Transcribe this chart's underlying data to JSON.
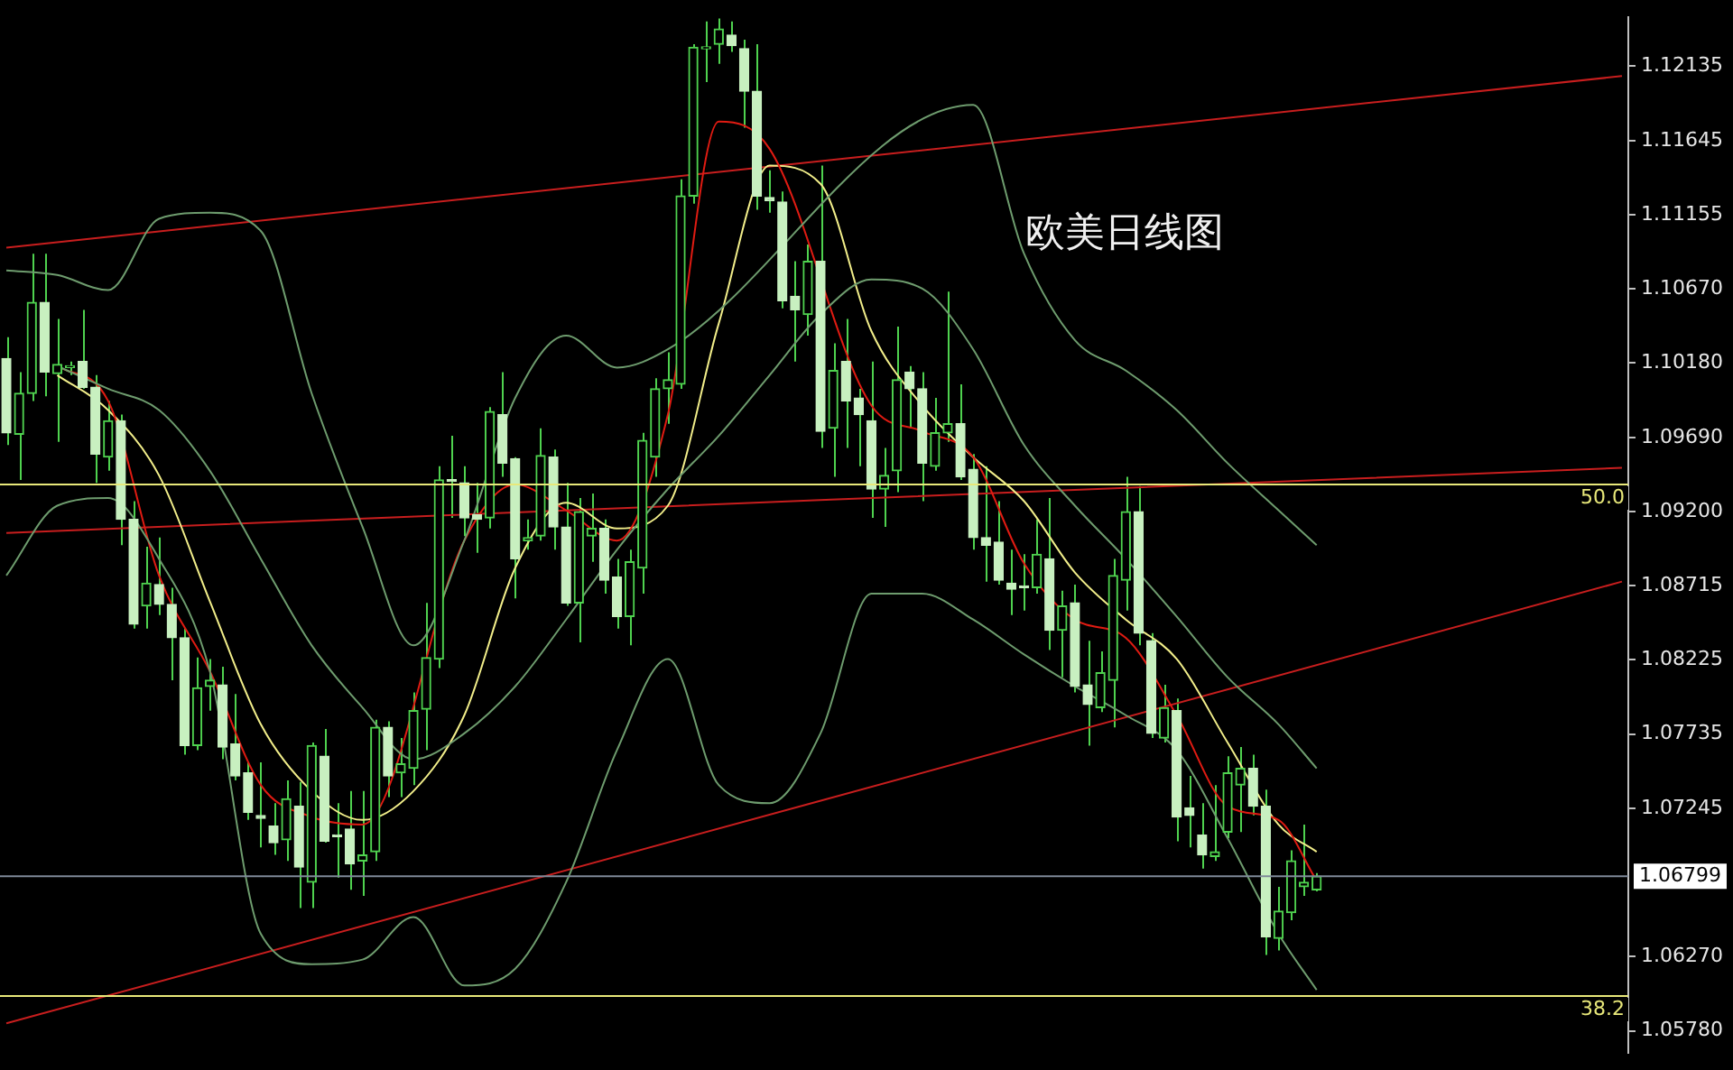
{
  "chart_data": {
    "type": "candlestick",
    "title": "欧美日线图",
    "color": "#4fd24f",
    "categories": [
      null,
      null,
      null,
      null,
      null,
      null,
      null,
      null,
      null,
      null,
      null,
      null,
      null,
      null,
      null,
      null,
      null,
      null,
      null,
      null,
      null,
      null,
      null,
      null,
      null,
      null,
      null,
      null,
      null,
      null,
      null,
      null,
      null,
      null,
      null,
      null,
      null,
      null,
      null,
      null,
      null,
      null,
      null,
      null,
      null,
      null,
      null,
      null,
      null,
      null,
      null,
      null,
      null,
      null,
      null,
      null,
      null,
      null,
      null,
      null,
      null,
      null,
      null,
      null,
      null,
      null,
      null,
      null,
      null,
      null,
      null,
      null,
      null,
      null,
      null,
      null,
      null,
      null,
      null,
      null,
      null,
      null,
      null,
      null,
      null,
      null,
      null,
      null,
      null,
      null,
      null,
      null,
      null,
      null,
      null,
      null,
      null,
      null,
      null,
      null,
      null,
      null,
      null,
      null,
      null,
      null,
      null,
      null,
      null,
      null,
      null,
      null,
      null,
      null,
      null,
      null,
      null,
      null,
      null,
      null,
      null,
      null,
      null,
      null,
      null,
      null,
      null,
      null
    ],
    "ohlc": [
      [
        1.1021,
        1.1035,
        1.0964,
        1.0972
      ],
      [
        1.0971,
        1.1012,
        1.0941,
        1.0998
      ],
      [
        1.0998,
        1.109,
        1.0993,
        1.1058
      ],
      [
        1.1058,
        1.109,
        1.0996,
        1.1012
      ],
      [
        1.1011,
        1.1047,
        1.0966,
        1.1017
      ],
      [
        1.1015,
        1.1019,
        1.101,
        1.1016
      ],
      [
        1.1019,
        1.1053,
        1.1001,
        1.1002
      ],
      [
        1.1002,
        1.101,
        1.0939,
        1.0958
      ],
      [
        1.0956,
        1.0993,
        1.0947,
        1.098
      ],
      [
        1.098,
        1.0984,
        1.0898,
        1.0915
      ],
      [
        1.0915,
        1.0927,
        1.0843,
        1.0846
      ],
      [
        1.0858,
        1.0897,
        1.0843,
        1.0873
      ],
      [
        1.0872,
        1.0903,
        1.0852,
        1.0859
      ],
      [
        1.0859,
        1.087,
        1.0809,
        1.0837
      ],
      [
        1.0837,
        1.0843,
        1.076,
        1.0766
      ],
      [
        1.0766,
        1.0824,
        1.0763,
        1.0804
      ],
      [
        1.0805,
        1.0823,
        1.0789,
        1.0809
      ],
      [
        1.0806,
        1.0818,
        1.0757,
        1.0765
      ],
      [
        1.0767,
        1.08,
        1.0743,
        1.0746
      ],
      [
        1.0748,
        1.0755,
        1.0717,
        1.0722
      ],
      [
        1.072,
        1.0755,
        1.0699,
        1.0718
      ],
      [
        1.0713,
        1.0728,
        1.0694,
        1.0702
      ],
      [
        1.0704,
        1.0743,
        1.069,
        1.0731
      ],
      [
        1.0726,
        1.0742,
        1.0659,
        1.0686
      ],
      [
        1.0676,
        1.0768,
        1.0659,
        1.0766
      ],
      [
        1.0759,
        1.0777,
        1.0702,
        1.0703
      ],
      [
        1.0707,
        1.0728,
        1.0679,
        1.0706
      ],
      [
        1.0711,
        1.0736,
        1.0671,
        1.0688
      ],
      [
        1.069,
        1.0736,
        1.0667,
        1.0694
      ],
      [
        1.0696,
        1.0783,
        1.069,
        1.0778
      ],
      [
        1.0778,
        1.0782,
        1.0732,
        1.0746
      ],
      [
        1.0748,
        1.0771,
        1.0732,
        1.0754
      ],
      [
        1.0751,
        1.0801,
        1.074,
        1.0789
      ],
      [
        1.079,
        1.086,
        1.0763,
        1.0824
      ],
      [
        1.0823,
        1.095,
        1.0817,
        1.0941
      ],
      [
        1.0941,
        1.097,
        1.0916,
        1.094
      ],
      [
        1.0939,
        1.095,
        1.0904,
        1.0916
      ],
      [
        1.0918,
        1.0939,
        1.0893,
        1.0915
      ],
      [
        1.0916,
        1.0989,
        1.0909,
        1.0986
      ],
      [
        1.0984,
        1.1012,
        1.0943,
        1.0952
      ],
      [
        1.0955,
        1.0956,
        1.0863,
        1.0889
      ],
      [
        1.0901,
        1.0915,
        1.0895,
        1.0903
      ],
      [
        1.0904,
        1.0975,
        1.0901,
        1.0957
      ],
      [
        1.0956,
        1.0961,
        1.0895,
        1.091
      ],
      [
        1.091,
        1.0939,
        1.0858,
        1.086
      ],
      [
        1.086,
        1.0929,
        1.0834,
        1.092
      ],
      [
        1.0904,
        1.0932,
        1.0887,
        1.0909
      ],
      [
        1.0909,
        1.0915,
        1.0866,
        1.0875
      ],
      [
        1.0877,
        1.0889,
        1.0843,
        1.0851
      ],
      [
        1.0851,
        1.0895,
        1.0832,
        1.0887
      ],
      [
        1.0883,
        1.0972,
        1.0866,
        1.0967
      ],
      [
        1.0956,
        1.1008,
        1.0943,
        1.1001
      ],
      [
        1.1001,
        1.1025,
        1.0978,
        1.1007
      ],
      [
        1.1004,
        1.1139,
        1.1001,
        1.1128
      ],
      [
        1.1128,
        1.1228,
        1.1123,
        1.1226
      ],
      [
        1.1225,
        1.1243,
        1.1203,
        1.1226
      ],
      [
        1.1228,
        1.1245,
        1.1215,
        1.1238
      ],
      [
        1.1234,
        1.1243,
        1.1223,
        1.1227
      ],
      [
        1.1225,
        1.1231,
        1.1173,
        1.1197
      ],
      [
        1.1197,
        1.1228,
        1.1119,
        1.1128
      ],
      [
        1.1127,
        1.1145,
        1.1117,
        1.1125
      ],
      [
        1.1124,
        1.1131,
        1.1054,
        1.1059
      ],
      [
        1.1062,
        1.1085,
        1.1019,
        1.1053
      ],
      [
        1.105,
        1.1096,
        1.1036,
        1.1085
      ],
      [
        1.1085,
        1.1148,
        1.0962,
        1.0973
      ],
      [
        1.0975,
        1.1031,
        1.0943,
        1.1013
      ],
      [
        1.1019,
        1.1047,
        1.0962,
        1.0993
      ],
      [
        1.0995,
        1.1001,
        1.095,
        1.0984
      ],
      [
        1.098,
        1.1019,
        1.0916,
        1.0935
      ],
      [
        1.0935,
        1.0962,
        1.091,
        1.0944
      ],
      [
        1.0947,
        1.1042,
        1.0933,
        1.1007
      ],
      [
        1.1012,
        1.1016,
        1.0975,
        1.1001
      ],
      [
        1.1001,
        1.1012,
        1.0927,
        1.0952
      ],
      [
        1.095,
        1.0995,
        1.0947,
        1.0972
      ],
      [
        1.0972,
        1.1065,
        1.0966,
        1.0978
      ],
      [
        1.0978,
        1.1004,
        1.0941,
        1.0943
      ],
      [
        1.0948,
        1.0958,
        1.0895,
        1.0903
      ],
      [
        1.0903,
        1.095,
        1.0874,
        1.0898
      ],
      [
        1.09,
        1.0927,
        1.0872,
        1.0875
      ],
      [
        1.0873,
        1.0895,
        1.0852,
        1.0869
      ],
      [
        1.0871,
        1.0892,
        1.0855,
        1.087
      ],
      [
        1.087,
        1.0915,
        1.0866,
        1.0892
      ],
      [
        1.0889,
        1.0929,
        1.0829,
        1.0842
      ],
      [
        1.0842,
        1.0868,
        1.0811,
        1.0858
      ],
      [
        1.086,
        1.0872,
        1.0801,
        1.0805
      ],
      [
        1.0806,
        1.0835,
        1.0766,
        1.0793
      ],
      [
        1.0791,
        1.0828,
        1.0788,
        1.0814
      ],
      [
        1.0809,
        1.0889,
        1.0778,
        1.0878
      ],
      [
        1.0875,
        1.0943,
        1.0855,
        1.092
      ],
      [
        1.092,
        1.0937,
        1.0832,
        1.084
      ],
      [
        1.0835,
        1.084,
        1.0771,
        1.0774
      ],
      [
        1.0771,
        1.0806,
        1.0768,
        1.0791
      ],
      [
        1.0789,
        1.0797,
        1.0703,
        1.0719
      ],
      [
        1.0725,
        1.0746,
        1.0699,
        1.072
      ],
      [
        1.0707,
        1.0728,
        1.0685,
        1.0694
      ],
      [
        1.0693,
        1.074,
        1.069,
        1.0696
      ],
      [
        1.0709,
        1.0759,
        1.0705,
        1.0748
      ],
      [
        1.074,
        1.0765,
        1.0709,
        1.0751
      ],
      [
        1.0751,
        1.076,
        1.072,
        1.0726
      ],
      [
        1.0726,
        1.0737,
        1.0628,
        1.064
      ],
      [
        1.0639,
        1.0673,
        1.0631,
        1.0657
      ],
      [
        1.0656,
        1.0697,
        1.0651,
        1.069
      ],
      [
        1.0673,
        1.0714,
        1.0667,
        1.0676
      ],
      [
        1.0671,
        1.0682,
        1.067,
        1.068
      ],
      null,
      null,
      null,
      null,
      null,
      null,
      null,
      null,
      null,
      null,
      null,
      null,
      null,
      null,
      null,
      null,
      null,
      null,
      null,
      null,
      null,
      null,
      null,
      null
    ],
    "colors": [
      "#c8f0c0",
      "#4fd24f",
      "#4fd24f",
      "#c8f0c0",
      "#4fd24f",
      "#4fd24f",
      "#c8f0c0",
      "#c8f0c0",
      "#4fd24f",
      "#c8f0c0",
      "#c8f0c0",
      "#4fd24f",
      "#c8f0c0",
      "#c8f0c0",
      "#c8f0c0",
      "#4fd24f",
      "#4fd24f",
      "#c8f0c0",
      "#c8f0c0",
      "#c8f0c0",
      "#c8f0c0",
      "#c8f0c0",
      "#4fd24f",
      "#c8f0c0",
      "#4fd24f",
      "#c8f0c0",
      "#c8f0c0",
      "#c8f0c0",
      "#4fd24f",
      "#4fd24f",
      "#c8f0c0",
      "#4fd24f",
      "#4fd24f",
      "#4fd24f",
      "#4fd24f",
      "#c8f0c0",
      "#c8f0c0",
      "#c8f0c0",
      "#4fd24f",
      "#c8f0c0",
      "#c8f0c0",
      "#4fd24f",
      "#4fd24f",
      "#c8f0c0",
      "#c8f0c0",
      "#4fd24f",
      "#4fd24f",
      "#c8f0c0",
      "#c8f0c0",
      "#4fd24f",
      "#4fd24f",
      "#4fd24f",
      "#4fd24f",
      "#4fd24f",
      "#4fd24f",
      "#4fd24f",
      "#4fd24f",
      "#c8f0c0",
      "#c8f0c0",
      "#c8f0c0",
      "#c8f0c0",
      "#c8f0c0",
      "#c8f0c0",
      "#4fd24f",
      "#c8f0c0",
      "#4fd24f",
      "#c8f0c0",
      "#c8f0c0",
      "#c8f0c0",
      "#4fd24f",
      "#4fd24f",
      "#c8f0c0",
      "#c8f0c0",
      "#4fd24f",
      "#4fd24f",
      "#c8f0c0",
      "#c8f0c0",
      "#c8f0c0",
      "#c8f0c0",
      "#c8f0c0",
      "#c8f0c0",
      "#4fd24f",
      "#c8f0c0",
      "#4fd24f",
      "#c8f0c0",
      "#c8f0c0",
      "#4fd24f",
      "#4fd24f",
      "#4fd24f",
      "#c8f0c0",
      "#c8f0c0",
      "#4fd24f",
      "#c8f0c0",
      "#c8f0c0",
      "#c8f0c0",
      "#4fd24f",
      "#4fd24f",
      "#4fd24f",
      "#c8f0c0",
      "#c8f0c0",
      "#4fd24f",
      "#4fd24f",
      "#4fd24f",
      "#4fd24f",
      null,
      null,
      null,
      null,
      null,
      null,
      null,
      null,
      null,
      null,
      null,
      null,
      null,
      null,
      null,
      null,
      null,
      null,
      null,
      null,
      null,
      null,
      null,
      null
    ],
    "series": [
      {
        "type": "line",
        "color": "#6e9c6e",
        "values": [
          1.1079,
          null,
          null,
          null,
          1.1076,
          null,
          null,
          null,
          1.1066,
          null,
          null,
          null,
          1.1113,
          null,
          null,
          null,
          1.1117,
          null,
          null,
          null,
          1.1105,
          null,
          null,
          null,
          1.0998,
          null,
          null,
          null,
          1.091,
          null,
          null,
          null,
          1.0832,
          null,
          null,
          null,
          1.0901,
          null,
          null,
          null,
          1.0995,
          null,
          null,
          null,
          1.1036,
          null,
          null,
          null,
          1.1015,
          null,
          null,
          null,
          1.1027,
          null,
          null,
          null,
          null,
          null,
          null,
          null,
          null,
          null,
          null,
          null,
          null,
          null,
          null,
          null,
          null,
          null,
          null,
          null,
          null,
          null,
          null,
          null,
          1.1188,
          null,
          null,
          null,
          1.109,
          null,
          null,
          null,
          1.1033,
          null,
          null,
          null,
          1.1013,
          null,
          null,
          null,
          1.0987,
          null,
          null,
          null,
          1.0952,
          null,
          null,
          null,
          1.0921,
          null,
          null,
          1.0898,
          null,
          null,
          null,
          null,
          null,
          null,
          null,
          null,
          null,
          null,
          null,
          null,
          null,
          null,
          null,
          null,
          null,
          null,
          null,
          null,
          null,
          null,
          null,
          null
        ]
      },
      {
        "type": "line",
        "color": "#6e9c6e",
        "values": [
          null,
          null,
          null,
          null,
          1.1016,
          null,
          null,
          null,
          1.1001,
          null,
          null,
          null,
          1.0987,
          null,
          null,
          null,
          1.0947,
          null,
          null,
          null,
          1.0889,
          null,
          null,
          null,
          1.0832,
          null,
          null,
          null,
          1.0791,
          null,
          null,
          null,
          1.0757,
          null,
          null,
          null,
          1.0774,
          null,
          null,
          null,
          1.0805,
          null,
          null,
          null,
          1.0849,
          null,
          null,
          null,
          1.0895,
          null,
          null,
          null,
          1.0935,
          null,
          null,
          null,
          1.097,
          null,
          null,
          null,
          1.101,
          null,
          null,
          null,
          1.105,
          null,
          null,
          null,
          1.1073,
          null,
          null,
          null,
          1.1067,
          null,
          null,
          null,
          1.1027,
          null,
          null,
          null,
          1.0964,
          null,
          null,
          null,
          1.0924,
          null,
          null,
          null,
          1.0889,
          null,
          null,
          null,
          1.0851,
          null,
          null,
          null,
          1.0811,
          null,
          null,
          null,
          1.078,
          null,
          null,
          1.0751,
          null,
          null,
          null,
          null,
          null,
          null,
          null,
          null,
          null,
          null,
          null,
          null,
          null,
          null,
          null,
          null,
          null,
          null,
          null,
          null,
          null,
          null,
          null,
          null
        ]
      },
      {
        "type": "line",
        "color": "#6e9c6e",
        "values": [
          1.0878,
          null,
          null,
          null,
          1.0924,
          null,
          null,
          null,
          1.0929,
          null,
          null,
          null,
          1.0889,
          null,
          null,
          null,
          1.0815,
          null,
          null,
          null,
          1.0642,
          null,
          null,
          null,
          1.0622,
          null,
          null,
          null,
          1.0625,
          null,
          null,
          null,
          1.0653,
          null,
          null,
          null,
          1.0608,
          null,
          null,
          null,
          1.0619,
          null,
          null,
          null,
          1.0676,
          null,
          null,
          null,
          1.0763,
          null,
          null,
          null,
          1.0823,
          null,
          null,
          null,
          1.074,
          null,
          null,
          null,
          1.0728,
          null,
          null,
          null,
          1.0774,
          null,
          null,
          null,
          1.0866,
          null,
          null,
          null,
          1.0866,
          null,
          null,
          null,
          1.0849,
          null,
          null,
          null,
          1.0826,
          null,
          null,
          null,
          1.0805,
          null,
          null,
          null,
          1.0786,
          null,
          null,
          null,
          1.0763,
          null,
          null,
          null,
          1.0705,
          null,
          null,
          null,
          1.0642,
          null,
          null,
          1.0605,
          null,
          null,
          null,
          null,
          null,
          null,
          null,
          null,
          null,
          null,
          null,
          null,
          null,
          null,
          null,
          null,
          null,
          null,
          null,
          null,
          null,
          null,
          null,
          null
        ]
      },
      {
        "type": "line",
        "color": "#e01b12",
        "values": [
          null,
          null,
          null,
          null,
          1.1016,
          null,
          null,
          null,
          1.0993,
          null,
          null,
          null,
          1.0878,
          null,
          null,
          null,
          1.0815,
          null,
          null,
          null,
          1.074,
          null,
          null,
          null,
          1.0719,
          null,
          null,
          null,
          1.0714,
          null,
          null,
          null,
          null,
          null,
          null,
          null,
          1.0901,
          null,
          null,
          null,
          1.0938,
          null,
          null,
          null,
          1.0921,
          null,
          null,
          null,
          1.0901,
          null,
          null,
          null,
          1.0984,
          null,
          null,
          null,
          1.1177,
          null,
          null,
          null,
          1.1159,
          null,
          null,
          null,
          null,
          null,
          null,
          null,
          1.099,
          null,
          null,
          null,
          1.0973,
          null,
          null,
          null,
          1.0956,
          null,
          null,
          null,
          1.0886,
          null,
          null,
          null,
          1.0849,
          null,
          null,
          null,
          1.0837,
          null,
          null,
          null,
          1.0786,
          null,
          null,
          null,
          1.0726,
          null,
          null,
          null,
          1.0717,
          null,
          null,
          1.0677,
          null,
          null,
          null,
          null,
          null,
          null,
          null,
          null,
          null,
          null,
          null,
          null,
          null,
          null,
          null,
          null,
          null,
          null,
          null,
          null,
          null,
          null,
          null,
          null
        ]
      },
      {
        "type": "line",
        "color": "#f2ee8a",
        "values": [
          null,
          null,
          null,
          null,
          1.101,
          null,
          null,
          null,
          1.0987,
          null,
          null,
          null,
          1.0944,
          null,
          null,
          null,
          1.0861,
          null,
          null,
          null,
          1.078,
          null,
          null,
          null,
          1.0736,
          null,
          null,
          null,
          1.0717,
          null,
          null,
          null,
          1.0736,
          null,
          null,
          null,
          1.0786,
          null,
          null,
          null,
          1.0883,
          null,
          null,
          null,
          1.0926,
          null,
          null,
          null,
          1.0909,
          null,
          null,
          null,
          1.0924,
          null,
          null,
          null,
          1.1044,
          null,
          null,
          null,
          1.1148,
          null,
          null,
          null,
          1.1136,
          null,
          null,
          null,
          1.1039,
          null,
          null,
          null,
          1.099,
          null,
          null,
          null,
          1.0956,
          null,
          null,
          null,
          1.0927,
          null,
          null,
          null,
          1.088,
          null,
          null,
          null,
          1.0849,
          null,
          null,
          null,
          1.0823,
          null,
          null,
          null,
          1.0768,
          null,
          null,
          null,
          1.0714,
          null,
          null,
          1.0696,
          null,
          null,
          null,
          null,
          null,
          null,
          null,
          null,
          null,
          null,
          null,
          null,
          null,
          null,
          null,
          null,
          null,
          null,
          null,
          null,
          null,
          null,
          null,
          null
        ]
      },
      {
        "type": "line",
        "color": "#c81e1e",
        "values": [
          1.1094,
          null,
          null,
          null,
          null,
          null,
          null,
          null,
          null,
          null,
          null,
          null,
          null,
          null,
          null,
          null,
          null,
          null,
          null,
          null,
          null,
          null,
          null,
          null,
          null,
          null,
          null,
          null,
          null,
          null,
          null,
          null,
          null,
          null,
          null,
          null,
          null,
          null,
          null,
          null,
          null,
          null,
          null,
          null,
          null,
          null,
          null,
          null,
          null,
          null,
          null,
          null,
          null,
          null,
          null,
          null,
          null,
          null,
          null,
          null,
          null,
          null,
          null,
          null,
          null,
          null,
          null,
          null,
          null,
          null,
          null,
          null,
          null,
          null,
          null,
          null,
          null,
          null,
          null,
          null,
          null,
          null,
          null,
          null,
          null,
          null,
          null,
          null,
          null,
          null,
          null,
          null,
          null,
          null,
          null,
          null,
          null,
          null,
          null,
          null,
          null,
          null,
          null,
          null,
          null,
          null,
          null,
          null,
          null,
          null,
          null,
          null,
          null,
          null,
          null,
          null,
          null,
          null,
          null,
          null,
          null,
          null,
          null,
          null,
          null,
          null,
          null,
          1.1207
        ]
      },
      {
        "type": "line",
        "color": "#c81e1e",
        "values": [
          1.0906,
          null,
          null,
          null,
          null,
          null,
          null,
          null,
          null,
          null,
          null,
          null,
          null,
          null,
          null,
          null,
          null,
          null,
          null,
          null,
          null,
          null,
          null,
          null,
          null,
          null,
          null,
          null,
          null,
          null,
          null,
          null,
          null,
          null,
          null,
          null,
          null,
          null,
          null,
          null,
          null,
          null,
          null,
          null,
          null,
          null,
          null,
          null,
          null,
          null,
          null,
          null,
          null,
          null,
          null,
          null,
          null,
          null,
          null,
          null,
          null,
          null,
          null,
          null,
          null,
          null,
          null,
          null,
          null,
          null,
          null,
          null,
          null,
          null,
          null,
          null,
          null,
          null,
          null,
          null,
          null,
          null,
          null,
          null,
          null,
          null,
          null,
          null,
          null,
          null,
          null,
          null,
          null,
          null,
          null,
          null,
          null,
          null,
          null,
          null,
          null,
          null,
          null,
          null,
          null,
          null,
          null,
          null,
          null,
          null,
          null,
          null,
          null,
          null,
          null,
          null,
          null,
          null,
          null,
          null,
          null,
          null,
          null,
          null,
          null,
          null,
          null,
          1.0949
        ]
      },
      {
        "type": "line",
        "color": "#c81e1e",
        "values": [
          1.0583,
          null,
          null,
          null,
          null,
          null,
          null,
          null,
          null,
          null,
          null,
          null,
          null,
          null,
          null,
          null,
          null,
          null,
          null,
          null,
          null,
          null,
          null,
          null,
          null,
          null,
          null,
          null,
          null,
          null,
          null,
          null,
          null,
          null,
          null,
          null,
          null,
          null,
          null,
          null,
          null,
          null,
          null,
          null,
          null,
          null,
          null,
          null,
          null,
          null,
          null,
          null,
          null,
          null,
          null,
          null,
          null,
          null,
          null,
          null,
          null,
          null,
          null,
          null,
          null,
          null,
          null,
          null,
          null,
          null,
          null,
          null,
          null,
          null,
          null,
          null,
          null,
          null,
          null,
          null,
          null,
          null,
          null,
          null,
          null,
          null,
          null,
          null,
          null,
          null,
          null,
          null,
          null,
          null,
          null,
          null,
          null,
          null,
          null,
          null,
          null,
          null,
          null,
          null,
          null,
          null,
          null,
          null,
          null,
          null,
          null,
          null,
          null,
          null,
          null,
          null,
          null,
          null,
          null,
          null,
          null,
          null,
          null,
          null,
          null,
          null,
          null,
          1.0874
        ]
      }
    ],
    "ylim": [
      1.05637,
      1.12457
    ],
    "yticks": [
      1.12135,
      1.11645,
      1.11155,
      {
        "value": 1.1067,
        "label": "1.10670"
      },
      {
        "value": 1.1018,
        "label": "1.10180"
      },
      {
        "value": 1.0969,
        "label": "1.09690"
      },
      {
        "value": 1.092,
        "label": "1.09200"
      },
      1.08715,
      1.08225,
      1.07735,
      1.07245,
      {
        "value": 1.0627,
        "label": "1.06270"
      },
      {
        "value": 1.0578,
        "label": "1.05780"
      }
    ],
    "annotations": [
      {
        "text": "50.0",
        "y": 1.0938
      },
      {
        "text": "38.2",
        "y": 1.0601
      }
    ],
    "ref_lines": [
      {
        "axis": "y",
        "value": 1.0938,
        "color": "#e8e87a"
      },
      {
        "axis": "y",
        "value": 1.0601,
        "color": "#e8e87a"
      },
      {
        "axis": "y",
        "value": 1.06799,
        "label": "1.06799",
        "color": "#7f8a99"
      }
    ],
    "tick_labels": "y"
  }
}
